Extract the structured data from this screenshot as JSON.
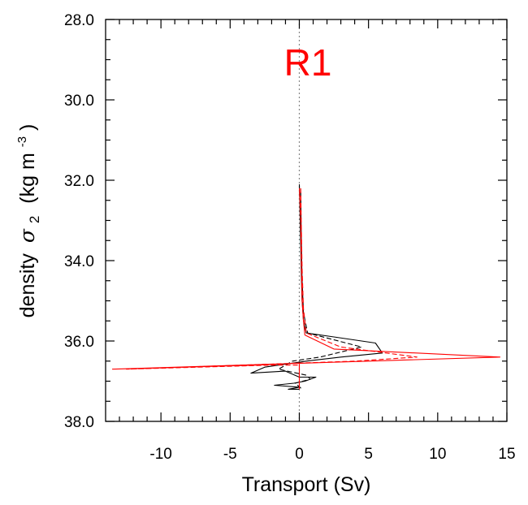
{
  "chart_data": {
    "type": "line",
    "panel_label": "R1",
    "panel_label_color": "#ff0000",
    "xlabel": "Transport (Sv)",
    "ylabel_main": "density",
    "ylabel_symbol": "σ",
    "ylabel_subscript": "2",
    "ylabel_units_open": "(kg m",
    "ylabel_units_exp": "-3",
    "ylabel_units_close": ")",
    "xlim": [
      -14,
      15
    ],
    "ylim": [
      38.0,
      28.0
    ],
    "y_inverted": true,
    "x_ticks": [
      -10,
      -5,
      0,
      5,
      10,
      15
    ],
    "x_tick_labels": [
      "-10",
      "-5",
      "0",
      "5",
      "10",
      "15"
    ],
    "y_ticks": [
      28,
      30,
      32,
      34,
      36,
      38
    ],
    "y_tick_labels": [
      "28.0",
      "30.0",
      "32.0",
      "34.0",
      "36.0",
      "38.0"
    ],
    "zero_line": {
      "x": 0,
      "style": "dotted",
      "color": "#888888"
    },
    "grid": false,
    "series": [
      {
        "color": "#000000",
        "dash": "solid",
        "points": [
          [
            0.0,
            32.1
          ],
          [
            0.05,
            32.8
          ],
          [
            0.1,
            33.6
          ],
          [
            0.15,
            34.4
          ],
          [
            0.2,
            35.0
          ],
          [
            0.3,
            35.5
          ],
          [
            0.5,
            35.8
          ],
          [
            2.5,
            35.9
          ],
          [
            5.5,
            36.05
          ],
          [
            6.0,
            36.3
          ],
          [
            3.0,
            36.4
          ],
          [
            0.5,
            36.5
          ],
          [
            -2.5,
            36.65
          ],
          [
            -3.5,
            36.8
          ],
          [
            -1.0,
            36.75
          ],
          [
            0.0,
            36.9
          ],
          [
            1.2,
            36.9
          ],
          [
            0.4,
            37.0
          ],
          [
            -0.4,
            37.05
          ],
          [
            -1.8,
            37.1
          ],
          [
            0.0,
            37.15
          ],
          [
            -0.8,
            37.2
          ],
          [
            0.0,
            37.2
          ]
        ]
      },
      {
        "color": "#000000",
        "dash": "dashed",
        "points": [
          [
            0.1,
            32.3
          ],
          [
            0.15,
            33.5
          ],
          [
            0.2,
            34.5
          ],
          [
            0.3,
            35.3
          ],
          [
            0.6,
            35.8
          ],
          [
            4.5,
            36.15
          ],
          [
            1.5,
            36.4
          ],
          [
            -0.5,
            36.5
          ],
          [
            -1.5,
            36.7
          ],
          [
            0.5,
            36.85
          ],
          [
            0.8,
            36.95
          ],
          [
            -0.3,
            37.05
          ],
          [
            0.2,
            37.2
          ]
        ]
      },
      {
        "color": "#ff0000",
        "dash": "solid",
        "points": [
          [
            0.0,
            32.2
          ],
          [
            0.1,
            33.0
          ],
          [
            0.15,
            34.0
          ],
          [
            0.2,
            35.0
          ],
          [
            0.3,
            35.5
          ],
          [
            0.4,
            35.85
          ],
          [
            2.5,
            36.2
          ],
          [
            14.5,
            36.4
          ],
          [
            5.0,
            36.5
          ],
          [
            -13.5,
            36.7
          ],
          [
            -3.0,
            36.6
          ],
          [
            0.0,
            36.55
          ],
          [
            0.0,
            36.85
          ],
          [
            0.0,
            37.2
          ]
        ]
      },
      {
        "color": "#ff0000",
        "dash": "dashed",
        "points": [
          [
            0.1,
            32.2
          ],
          [
            0.15,
            33.2
          ],
          [
            0.2,
            34.2
          ],
          [
            0.3,
            35.2
          ],
          [
            0.5,
            35.8
          ],
          [
            3.0,
            36.15
          ],
          [
            8.5,
            36.4
          ],
          [
            4.0,
            36.5
          ],
          [
            -12.5,
            36.7
          ],
          [
            -2.0,
            36.6
          ],
          [
            0.0,
            36.6
          ],
          [
            0.0,
            37.2
          ]
        ]
      }
    ]
  }
}
